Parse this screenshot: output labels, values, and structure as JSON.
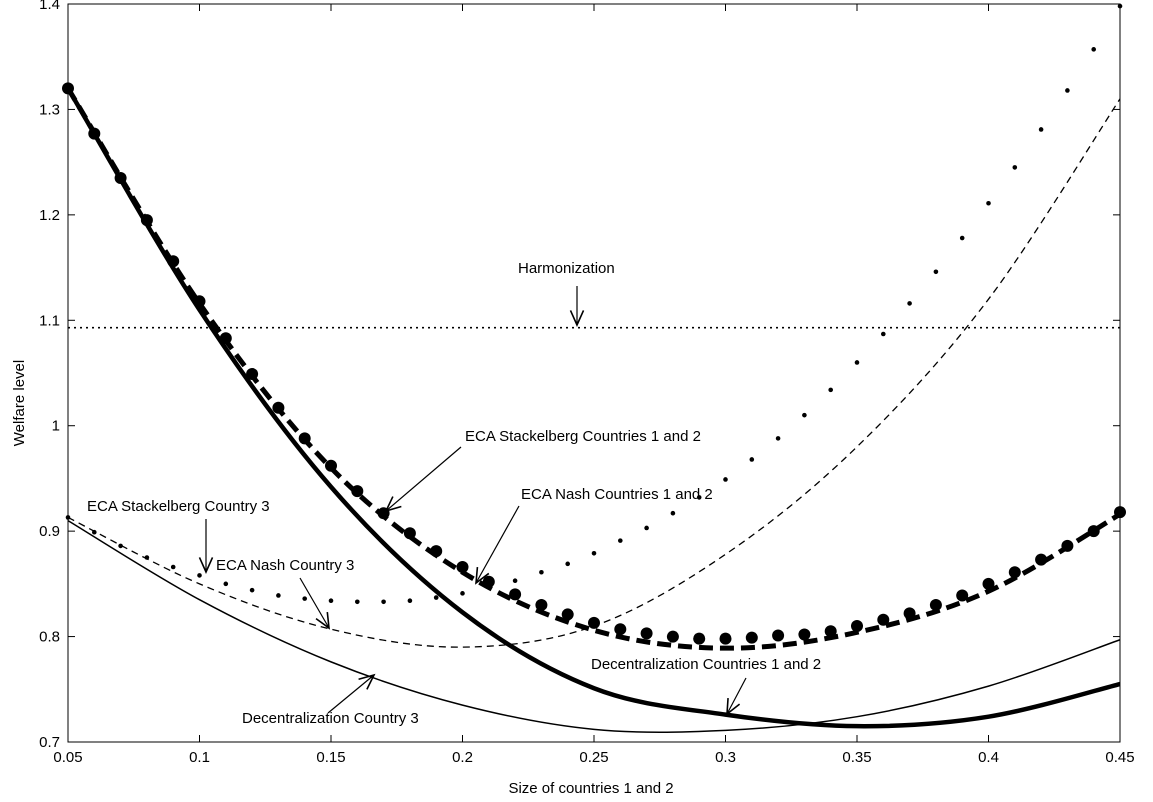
{
  "chart_data": {
    "type": "line",
    "title": "",
    "xlabel": "Size of countries 1 and 2",
    "ylabel": "Welfare level",
    "xlim": [
      0.05,
      0.45
    ],
    "ylim": [
      0.7,
      1.4
    ],
    "xticks": [
      "0.05",
      "0.1",
      "0.15",
      "0.2",
      "0.25",
      "0.3",
      "0.35",
      "0.4",
      "0.45"
    ],
    "yticks": [
      "0.7",
      "0.8",
      "0.9",
      "1",
      "1.1",
      "1.2",
      "1.3",
      "1.4"
    ],
    "grid": false,
    "legend": "none",
    "series": [
      {
        "name": "Harmonization",
        "style": "dotted-thin",
        "x": [
          0.05,
          0.45
        ],
        "y": [
          1.093,
          1.093
        ]
      },
      {
        "name": "Decentralization Countries 1 and 2",
        "style": "solid-thick",
        "x": [
          0.05,
          0.1,
          0.15,
          0.2,
          0.25,
          0.3,
          0.35,
          0.4,
          0.45
        ],
        "y": [
          1.32,
          1.11,
          0.942,
          0.823,
          0.751,
          0.726,
          0.715,
          0.724,
          0.755
        ]
      },
      {
        "name": "ECA Stackelberg Countries 1 and 2",
        "style": "dashed-thick",
        "x": [
          0.05,
          0.1,
          0.15,
          0.2,
          0.25,
          0.3,
          0.35,
          0.4,
          0.45
        ],
        "y": [
          1.32,
          1.116,
          0.96,
          0.861,
          0.806,
          0.789,
          0.804,
          0.843,
          0.916
        ]
      },
      {
        "name": "ECA Nash Countries 1 and 2",
        "style": "large-dots",
        "x": [
          0.05,
          0.06,
          0.07,
          0.08,
          0.09,
          0.1,
          0.11,
          0.12,
          0.13,
          0.14,
          0.15,
          0.16,
          0.17,
          0.18,
          0.19,
          0.2,
          0.21,
          0.22,
          0.23,
          0.24,
          0.25,
          0.26,
          0.27,
          0.28,
          0.29,
          0.3,
          0.31,
          0.32,
          0.33,
          0.34,
          0.35,
          0.36,
          0.37,
          0.38,
          0.39,
          0.4,
          0.41,
          0.42,
          0.43,
          0.44,
          0.45
        ],
        "y": [
          1.32,
          1.277,
          1.235,
          1.195,
          1.156,
          1.118,
          1.083,
          1.049,
          1.017,
          0.988,
          0.962,
          0.938,
          0.917,
          0.898,
          0.881,
          0.866,
          0.852,
          0.84,
          0.83,
          0.821,
          0.813,
          0.807,
          0.803,
          0.8,
          0.798,
          0.798,
          0.799,
          0.801,
          0.802,
          0.805,
          0.81,
          0.816,
          0.822,
          0.83,
          0.839,
          0.85,
          0.861,
          0.873,
          0.886,
          0.9,
          0.918
        ]
      },
      {
        "name": "ECA Stackelberg Country 3",
        "style": "small-dots",
        "x": [
          0.05,
          0.06,
          0.07,
          0.08,
          0.09,
          0.1,
          0.11,
          0.12,
          0.13,
          0.14,
          0.15,
          0.16,
          0.17,
          0.18,
          0.19,
          0.2,
          0.21,
          0.22,
          0.23,
          0.24,
          0.25,
          0.26,
          0.27,
          0.28,
          0.29,
          0.3,
          0.31,
          0.32,
          0.33,
          0.34,
          0.35,
          0.36,
          0.37,
          0.38,
          0.39,
          0.4,
          0.41,
          0.42,
          0.43,
          0.44,
          0.45
        ],
        "y": [
          0.913,
          0.899,
          0.886,
          0.875,
          0.866,
          0.858,
          0.85,
          0.844,
          0.839,
          0.836,
          0.834,
          0.833,
          0.833,
          0.834,
          0.837,
          0.841,
          0.847,
          0.853,
          0.861,
          0.869,
          0.879,
          0.891,
          0.903,
          0.917,
          0.932,
          0.949,
          0.968,
          0.988,
          1.01,
          1.034,
          1.06,
          1.087,
          1.116,
          1.146,
          1.178,
          1.211,
          1.245,
          1.281,
          1.318,
          1.357,
          1.398
        ]
      },
      {
        "name": "ECA Nash Country 3",
        "style": "dashed-thin",
        "x": [
          0.05,
          0.1,
          0.15,
          0.2,
          0.25,
          0.3,
          0.35,
          0.4,
          0.45
        ],
        "y": [
          0.913,
          0.85,
          0.807,
          0.79,
          0.81,
          0.878,
          0.98,
          1.12,
          1.31
        ]
      },
      {
        "name": "Decentralization Country 3",
        "style": "solid-thin",
        "x": [
          0.05,
          0.1,
          0.15,
          0.2,
          0.25,
          0.3,
          0.35,
          0.4,
          0.45
        ],
        "y": [
          0.91,
          0.835,
          0.776,
          0.735,
          0.712,
          0.711,
          0.724,
          0.753,
          0.797
        ]
      }
    ],
    "annotations": [
      {
        "id": "harmonization",
        "text": "Harmonization"
      },
      {
        "id": "eca-stack-12",
        "text": "ECA Stackelberg Countries 1 and 2"
      },
      {
        "id": "eca-nash-12",
        "text": "ECA Nash Countries 1 and 2"
      },
      {
        "id": "eca-stack-3",
        "text": "ECA Stackelberg Country 3"
      },
      {
        "id": "eca-nash-3",
        "text": "ECA Nash Country 3"
      },
      {
        "id": "decent-12",
        "text": "Decentralization Countries 1 and 2"
      },
      {
        "id": "decent-3",
        "text": "Decentralization Country 3"
      }
    ]
  }
}
